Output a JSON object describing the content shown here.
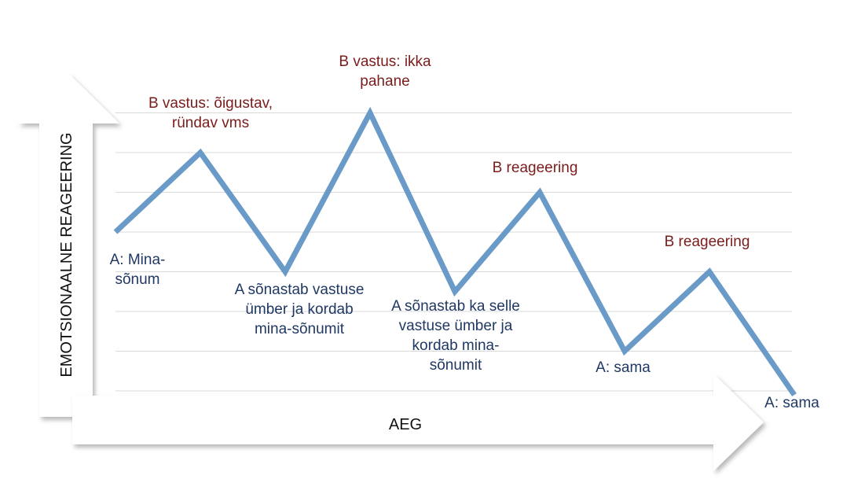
{
  "chart_data": {
    "type": "line",
    "title": "",
    "xlabel": "AEG",
    "ylabel": "EMOTSIONAALNE REAGEERING",
    "ylim": [
      0,
      8
    ],
    "grid": true,
    "legend": "none",
    "series": [
      {
        "color": "#6a9ac8",
        "points": [
          {
            "x": 0,
            "y": 4
          },
          {
            "x": 1,
            "y": 6
          },
          {
            "x": 2,
            "y": 3
          },
          {
            "x": 3,
            "y": 7
          },
          {
            "x": 4,
            "y": 2.5
          },
          {
            "x": 5,
            "y": 5
          },
          {
            "x": 6,
            "y": 1
          },
          {
            "x": 7,
            "y": 3
          },
          {
            "x": 8,
            "y": -0.1
          }
        ]
      }
    ],
    "annotations": [
      {
        "text": "A: Mina-sõnum",
        "lines": [
          "A: Mina-",
          "sõnum"
        ],
        "point": 0,
        "speaker": "A"
      },
      {
        "text": "B vastus: õigustav, ründav vms",
        "lines": [
          "B vastus: õigustav,",
          "ründav vms"
        ],
        "point": 1,
        "speaker": "B"
      },
      {
        "text": "A sõnastab vastuse ümber ja kordab mina-sõnumit",
        "lines": [
          "A sõnastab vastuse",
          "ümber ja kordab",
          "mina-sõnumit"
        ],
        "point": 2,
        "speaker": "A"
      },
      {
        "text": "B vastus: ikka pahane",
        "lines": [
          "B vastus: ikka",
          "pahane"
        ],
        "point": 3,
        "speaker": "B"
      },
      {
        "text": "A sõnastab ka selle vastuse ümber ja kordab mina-sõnumit",
        "lines": [
          "A sõnastab ka selle",
          "vastuse ümber ja",
          "kordab mina-",
          "sõnumit"
        ],
        "point": 4,
        "speaker": "A"
      },
      {
        "text": "B reageering",
        "lines": [
          "B reageering"
        ],
        "point": 5,
        "speaker": "B"
      },
      {
        "text": "A: sama",
        "lines": [
          "A: sama"
        ],
        "point": 6,
        "speaker": "A"
      },
      {
        "text": "B reageering",
        "lines": [
          "B reageering"
        ],
        "point": 7,
        "speaker": "B"
      },
      {
        "text": "A: sama",
        "lines": [
          "A: sama"
        ],
        "point": 8,
        "speaker": "A"
      }
    ]
  }
}
